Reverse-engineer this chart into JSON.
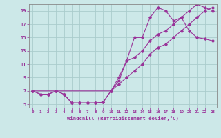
{
  "xlabel": "Windchill (Refroidissement éolien,°C)",
  "bg_color": "#cce8e8",
  "line_color": "#993399",
  "grid_color": "#aacccc",
  "xlim": [
    -0.5,
    23.5
  ],
  "ylim": [
    4.5,
    20.0
  ],
  "xticks": [
    0,
    1,
    2,
    3,
    4,
    5,
    6,
    7,
    8,
    9,
    10,
    11,
    12,
    13,
    14,
    15,
    16,
    17,
    18,
    19,
    20,
    21,
    22,
    23
  ],
  "yticks": [
    5,
    7,
    9,
    11,
    13,
    15,
    17,
    19
  ],
  "line1_x": [
    0,
    1,
    2,
    3,
    4,
    5,
    6,
    7,
    8,
    9,
    10,
    11,
    12,
    13,
    14,
    15,
    16,
    17,
    18,
    19,
    20,
    21,
    22,
    23
  ],
  "line1_y": [
    7,
    6.5,
    6.5,
    7,
    6.5,
    5.2,
    5.2,
    5.2,
    5.2,
    5.3,
    7.0,
    8.5,
    11.5,
    15.0,
    15.0,
    18.0,
    19.5,
    19.0,
    17.5,
    18.0,
    16.0,
    15.0,
    14.8,
    14.5
  ],
  "line2_x": [
    0,
    1,
    2,
    3,
    4,
    5,
    6,
    7,
    8,
    9,
    10,
    11,
    12,
    13,
    14,
    15,
    16,
    17,
    18,
    19,
    20,
    21,
    22,
    23
  ],
  "line2_y": [
    7,
    6.5,
    6.5,
    7.0,
    6.5,
    5.2,
    5.2,
    5.2,
    5.2,
    5.3,
    7.0,
    9.0,
    11.5,
    12.0,
    13.0,
    14.5,
    15.5,
    16.0,
    17.0,
    18.0,
    19.0,
    20.0,
    19.5,
    19.0
  ],
  "line3_x": [
    0,
    3,
    10,
    11,
    12,
    13,
    14,
    15,
    16,
    17,
    18,
    19,
    20,
    21,
    22,
    23
  ],
  "line3_y": [
    7,
    7,
    7,
    8,
    9,
    10,
    11,
    12.5,
    13.5,
    14.0,
    15.0,
    16.0,
    17.0,
    18.0,
    19.0,
    19.5
  ]
}
